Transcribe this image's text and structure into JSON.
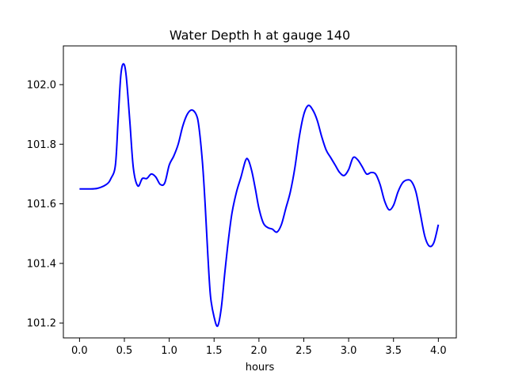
{
  "chart_data": {
    "type": "line",
    "title": "Water Depth h at gauge 140",
    "xlabel": "hours",
    "ylabel": "",
    "xlim": [
      -0.18,
      4.2
    ],
    "ylim": [
      101.15,
      102.13
    ],
    "xticks": [
      0.0,
      0.5,
      1.0,
      1.5,
      2.0,
      2.5,
      3.0,
      3.5,
      4.0
    ],
    "xtick_labels": [
      "0.0",
      "0.5",
      "1.0",
      "1.5",
      "2.0",
      "2.5",
      "3.0",
      "3.5",
      "4.0"
    ],
    "yticks": [
      101.2,
      101.4,
      101.6,
      101.8,
      102.0
    ],
    "ytick_labels": [
      "101.2",
      "101.4",
      "101.6",
      "101.8",
      "102.0"
    ],
    "grid": false,
    "legend": "none",
    "series": [
      {
        "color": "#0000ff",
        "points": [
          [
            0.0,
            101.65
          ],
          [
            0.1,
            101.65
          ],
          [
            0.2,
            101.652
          ],
          [
            0.3,
            101.665
          ],
          [
            0.35,
            101.685
          ],
          [
            0.4,
            101.73
          ],
          [
            0.43,
            101.88
          ],
          [
            0.46,
            102.03
          ],
          [
            0.49,
            102.07
          ],
          [
            0.52,
            102.03
          ],
          [
            0.56,
            101.88
          ],
          [
            0.6,
            101.72
          ],
          [
            0.65,
            101.66
          ],
          [
            0.7,
            101.685
          ],
          [
            0.75,
            101.685
          ],
          [
            0.8,
            101.7
          ],
          [
            0.85,
            101.69
          ],
          [
            0.9,
            101.665
          ],
          [
            0.95,
            101.67
          ],
          [
            1.0,
            101.73
          ],
          [
            1.05,
            101.76
          ],
          [
            1.1,
            101.8
          ],
          [
            1.15,
            101.86
          ],
          [
            1.2,
            101.9
          ],
          [
            1.25,
            101.915
          ],
          [
            1.3,
            101.9
          ],
          [
            1.33,
            101.86
          ],
          [
            1.37,
            101.74
          ],
          [
            1.4,
            101.6
          ],
          [
            1.43,
            101.43
          ],
          [
            1.46,
            101.29
          ],
          [
            1.5,
            101.22
          ],
          [
            1.54,
            101.19
          ],
          [
            1.58,
            101.25
          ],
          [
            1.62,
            101.37
          ],
          [
            1.66,
            101.48
          ],
          [
            1.7,
            101.57
          ],
          [
            1.75,
            101.64
          ],
          [
            1.8,
            101.69
          ],
          [
            1.85,
            101.745
          ],
          [
            1.88,
            101.748
          ],
          [
            1.92,
            101.71
          ],
          [
            1.96,
            101.65
          ],
          [
            2.0,
            101.585
          ],
          [
            2.05,
            101.535
          ],
          [
            2.1,
            101.52
          ],
          [
            2.15,
            101.515
          ],
          [
            2.2,
            101.505
          ],
          [
            2.25,
            101.53
          ],
          [
            2.3,
            101.585
          ],
          [
            2.35,
            101.64
          ],
          [
            2.4,
            101.72
          ],
          [
            2.45,
            101.825
          ],
          [
            2.5,
            101.9
          ],
          [
            2.55,
            101.93
          ],
          [
            2.6,
            101.915
          ],
          [
            2.65,
            101.88
          ],
          [
            2.7,
            101.825
          ],
          [
            2.75,
            101.78
          ],
          [
            2.8,
            101.755
          ],
          [
            2.85,
            101.73
          ],
          [
            2.9,
            101.705
          ],
          [
            2.95,
            101.695
          ],
          [
            3.0,
            101.715
          ],
          [
            3.05,
            101.755
          ],
          [
            3.1,
            101.748
          ],
          [
            3.15,
            101.725
          ],
          [
            3.2,
            101.7
          ],
          [
            3.25,
            101.705
          ],
          [
            3.3,
            101.7
          ],
          [
            3.35,
            101.665
          ],
          [
            3.4,
            101.61
          ],
          [
            3.45,
            101.58
          ],
          [
            3.5,
            101.595
          ],
          [
            3.55,
            101.64
          ],
          [
            3.6,
            101.67
          ],
          [
            3.65,
            101.68
          ],
          [
            3.7,
            101.675
          ],
          [
            3.75,
            101.64
          ],
          [
            3.8,
            101.565
          ],
          [
            3.85,
            101.49
          ],
          [
            3.9,
            101.458
          ],
          [
            3.95,
            101.47
          ],
          [
            4.0,
            101.53
          ]
        ]
      }
    ]
  }
}
